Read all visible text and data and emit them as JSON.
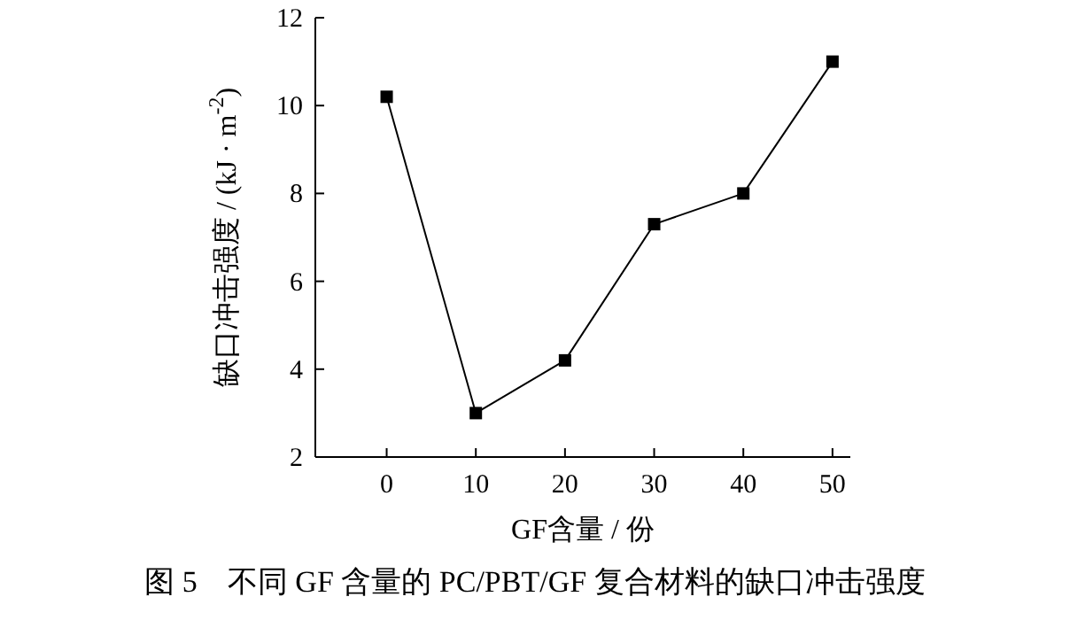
{
  "chart_data": {
    "type": "line",
    "xlabel": "GF含量 / 份",
    "ylabel": "缺口冲击强度 / (kJ · m$^{-2}$)",
    "annotations": [
      "图 5　不同 GF 含量的 PC/PBT/GF 复合材料的缺口冲击强度"
    ],
    "x": [
      0,
      10,
      20,
      30,
      40,
      50
    ],
    "series": [
      {
        "color": "#000000",
        "values": [
          10.2,
          3.0,
          4.2,
          7.3,
          8.0,
          11.0
        ]
      }
    ],
    "xlim": [
      -8,
      52
    ],
    "ylim": [
      2,
      12
    ],
    "xticks": [
      0,
      10,
      20,
      30,
      40,
      50
    ],
    "yticks": [
      2,
      4,
      6,
      8,
      10,
      12
    ],
    "marker": "square",
    "line_style": "solid",
    "grid": false
  }
}
